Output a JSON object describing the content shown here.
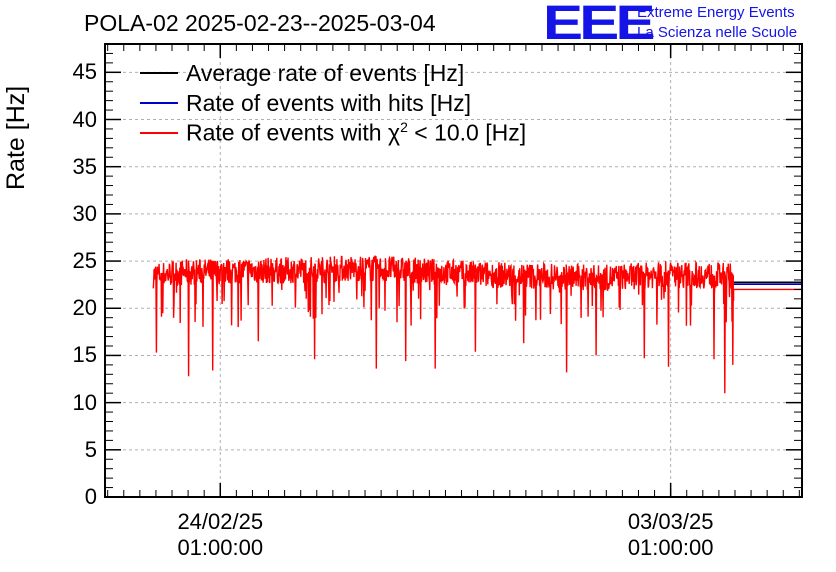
{
  "chart_data": {
    "type": "line",
    "title": "POLA-02 2025-02-23--2025-03-04",
    "ylabel": "Rate [Hz]",
    "xlabel": "",
    "ylim": [
      0,
      48
    ],
    "xlim": [
      "2025-02-22T06:00:00",
      "2025-03-05T02:00:00"
    ],
    "grid": true,
    "legend_position": "top-left",
    "yticks": [
      "0",
      "5",
      "10",
      "15",
      "20",
      "25",
      "30",
      "35",
      "40",
      "45"
    ],
    "xticks": [
      {
        "date": "24/02/25",
        "time": "01:00:00",
        "x": "2025-02-24T01:00:00"
      },
      {
        "date": "03/03/25",
        "time": "01:00:00",
        "x": "2025-03-03T01:00:00"
      }
    ],
    "series": [
      {
        "name": "Average rate of events [Hz]",
        "color": "#000000",
        "x": [
          "2025-03-04T00:30:00",
          "2025-03-05T02:00:00"
        ],
        "values": [
          22.4,
          22.4
        ]
      },
      {
        "name": "Rate of events with hits [Hz]",
        "color": "#0000cc",
        "x": [
          "2025-03-04T00:30:00",
          "2025-03-05T02:00:00"
        ],
        "values": [
          22.4,
          22.4
        ]
      },
      {
        "name": "Rate of events with χ² < 10.0 [Hz]",
        "color": "#ff0000",
        "name_parts": {
          "prefix": "Rate of events with ",
          "symbol": "χ",
          "sup": "2",
          "suffix": " < 10.0 [Hz]"
        },
        "x": [
          "2025-02-23T00:00:00",
          "2025-02-23T12:00:00",
          "2025-02-24T00:00:00",
          "2025-02-24T12:00:00",
          "2025-02-25T00:00:00",
          "2025-02-25T12:00:00",
          "2025-02-26T00:00:00",
          "2025-02-26T12:00:00",
          "2025-02-27T00:00:00",
          "2025-02-27T12:00:00",
          "2025-02-28T00:00:00",
          "2025-02-28T12:00:00",
          "2025-03-01T00:00:00",
          "2025-03-01T12:00:00",
          "2025-03-02T00:00:00",
          "2025-03-02T12:00:00",
          "2025-03-03T00:00:00",
          "2025-03-03T12:00:00",
          "2025-03-04T00:00:00",
          "2025-03-04T00:30:00",
          "2025-03-05T02:00:00"
        ],
        "values": [
          23.5,
          23.8,
          23.9,
          24.0,
          24.0,
          24.1,
          24.2,
          24.2,
          24.0,
          23.8,
          23.6,
          23.5,
          23.4,
          23.3,
          23.2,
          23.4,
          23.6,
          23.5,
          23.4,
          22.0,
          22.0
        ],
        "spread_range": [
          21.5,
          25.8
        ],
        "dips": [
          {
            "x": "2025-02-23T01:00:00",
            "value": 15.3
          },
          {
            "x": "2025-02-23T13:00:00",
            "value": 12.8
          },
          {
            "x": "2025-02-23T22:00:00",
            "value": 13.4
          },
          {
            "x": "2025-02-24T15:00:00",
            "value": 16.5
          },
          {
            "x": "2025-02-25T12:00:00",
            "value": 14.6
          },
          {
            "x": "2025-02-26T11:00:00",
            "value": 13.6
          },
          {
            "x": "2025-02-26T22:00:00",
            "value": 14.4
          },
          {
            "x": "2025-02-27T09:00:00",
            "value": 13.6
          },
          {
            "x": "2025-02-28T00:00:00",
            "value": 15.4
          },
          {
            "x": "2025-02-28T18:00:00",
            "value": 16.3
          },
          {
            "x": "2025-03-01T10:00:00",
            "value": 13.2
          },
          {
            "x": "2025-03-01T21:00:00",
            "value": 15.0
          },
          {
            "x": "2025-03-02T15:00:00",
            "value": 14.7
          },
          {
            "x": "2025-03-03T00:00:00",
            "value": 13.8
          },
          {
            "x": "2025-03-03T17:00:00",
            "value": 14.6
          },
          {
            "x": "2025-03-03T21:00:00",
            "value": 11.0
          },
          {
            "x": "2025-03-04T00:00:00",
            "value": 14.0
          }
        ]
      }
    ]
  },
  "logo": {
    "mark": "EEE",
    "line1": "Extreme Energy Events",
    "line2": "La Scienza nelle Scuole"
  }
}
